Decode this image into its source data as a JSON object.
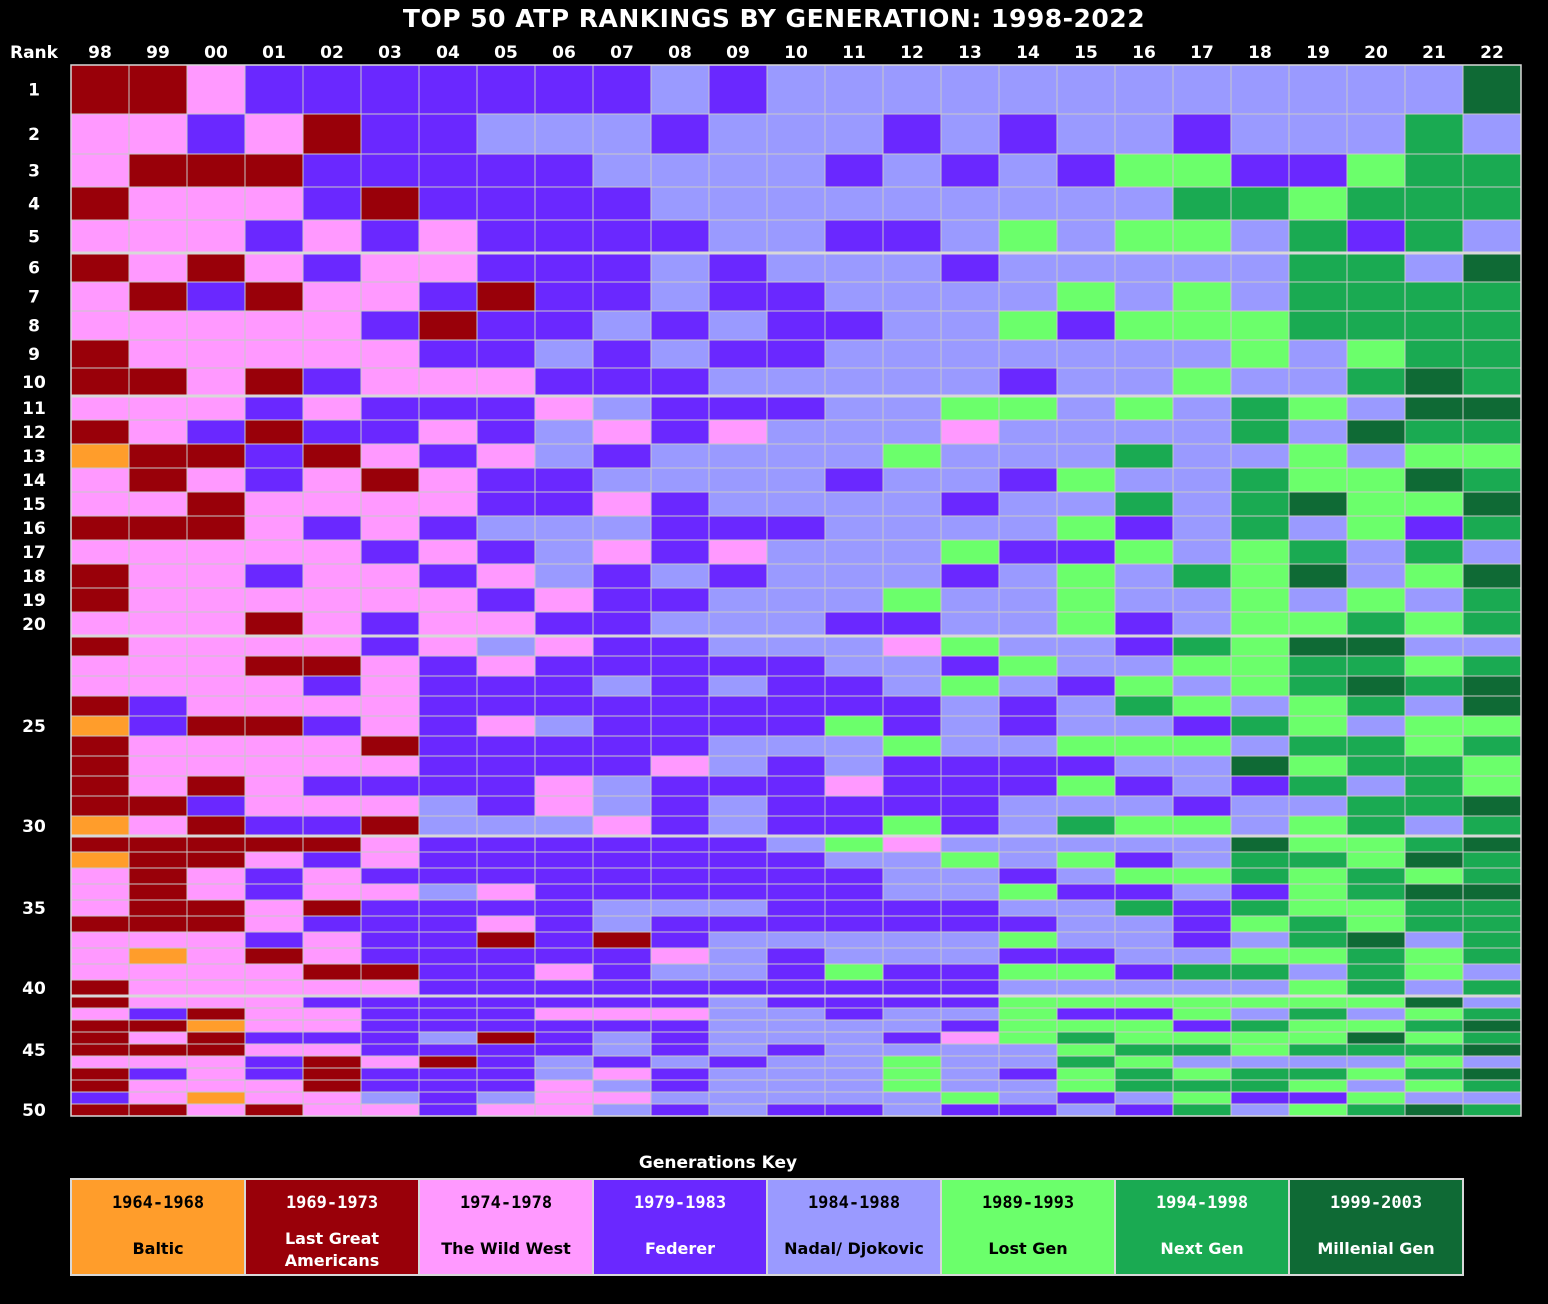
{
  "title": "TOP 50 ATP RANKINGS BY GENERATION: 1998-2022",
  "chart_data": {
    "type": "heatmap",
    "title": "TOP 50 ATP RANKINGS BY GENERATION: 1998-2022",
    "row_header": "Rank",
    "x_labels": [
      "98",
      "99",
      "00",
      "01",
      "02",
      "03",
      "04",
      "05",
      "06",
      "07",
      "08",
      "09",
      "10",
      "11",
      "12",
      "13",
      "14",
      "15",
      "16",
      "17",
      "18",
      "19",
      "20",
      "21",
      "22"
    ],
    "y_tick_labels": [
      {
        "rank": 1,
        "label": "1"
      },
      {
        "rank": 2,
        "label": "2"
      },
      {
        "rank": 3,
        "label": "3"
      },
      {
        "rank": 4,
        "label": "4"
      },
      {
        "rank": 5,
        "label": "5"
      },
      {
        "rank": 6,
        "label": "6"
      },
      {
        "rank": 7,
        "label": "7"
      },
      {
        "rank": 8,
        "label": "8"
      },
      {
        "rank": 9,
        "label": "9"
      },
      {
        "rank": 10,
        "label": "10"
      },
      {
        "rank": 11,
        "label": "11"
      },
      {
        "rank": 12,
        "label": "12"
      },
      {
        "rank": 13,
        "label": "13"
      },
      {
        "rank": 14,
        "label": "14"
      },
      {
        "rank": 15,
        "label": "15"
      },
      {
        "rank": 16,
        "label": "16"
      },
      {
        "rank": 17,
        "label": "17"
      },
      {
        "rank": 18,
        "label": "18"
      },
      {
        "rank": 19,
        "label": "19"
      },
      {
        "rank": 20,
        "label": "20"
      },
      {
        "rank": 25,
        "label": "25"
      },
      {
        "rank": 30,
        "label": "30"
      },
      {
        "rank": 35,
        "label": "35"
      },
      {
        "rank": 40,
        "label": "40"
      },
      {
        "rank": 45,
        "label": "45"
      },
      {
        "rank": 50,
        "label": "50"
      }
    ],
    "generations": [
      {
        "code": "B",
        "years": "1964-1968",
        "name": "Baltic",
        "color": "#FF9D2B"
      },
      {
        "code": "L",
        "years": "1969-1973",
        "name": "Last Great Americans",
        "color": "#990009"
      },
      {
        "code": "W",
        "years": "1974-1978",
        "name": "The Wild West",
        "color": "#FF99FF"
      },
      {
        "code": "F",
        "years": "1979-1983",
        "name": "Federer",
        "color": "#6A28FF"
      },
      {
        "code": "N",
        "years": "1984-1988",
        "name": "Nadal/ Djokovic",
        "color": "#9A9AFF"
      },
      {
        "code": "G",
        "years": "1989-1993",
        "name": "Lost Gen",
        "color": "#6BFF6B"
      },
      {
        "code": "X",
        "years": "1994-1998",
        "name": "Next Gen",
        "color": "#1AAA52"
      },
      {
        "code": "M",
        "years": "1999-2003",
        "name": "Millenial Gen",
        "color": "#0F6A35"
      }
    ],
    "legend": {
      "title": "Generations Key",
      "placement": "bottom"
    },
    "values_by_rank": [
      "LLWFFFFFFFNFNNNNNNNNNNNNM",
      "WWFWLFFNNNFNNNFNFNNFNNNXN",
      "WLLLFFFFFNNNNFNFNFGGFFGXX",
      "LWWWFLFFFFNNNNNNNNNXXGXXX",
      "WWWFWFWFFFFNNFFNGNGGNXFXN",
      "LWLWFWWFFFNFNNNFNNNNNXXNM",
      "WLFLWWFLFFNFFNNNNGNGNXXXX",
      "WWWWWFLFFNFNFFNNGFGGGXXXX",
      "LWWWWWFFNFNFFNNNNNNNGNGXX",
      "LLWLFWWWFFFNNNNNFNNGNNXMX",
      "WWWFWFFFWNFFFNNGGNGNXGNMM",
      "LWFLFFWFNWFWNNNWNNNNXNMXX",
      "BLLFLWFWNFNNNNGNNNXNNGNGG",
      "WLWFWLWFFNNNNFNNFGNNXGGMX",
      "WWLWWWWFFWFNNNNFNNXNXMGGM",
      "LLLWFWFNNNFFFNNNNGFNXNGFX",
      "WWWWWFWFNWFWNNNGFFGNGXNXN",
      "LWWFWWFWNFNFNNNFNGNXGMNGM",
      "LWWWWWWFWFFNNNGNNGNNGNGNX",
      "WWWLWFWWFFNNNFFNNGFNGGXGX",
      "LWWWWFWNWFFNNNWGNNFXGMMNN",
      "WWWLLWFWFFFFFNNFGNNGGXXGX",
      "WWWWFWFFFNFNFFNGNFGNGXMXM",
      "LFWWWWFFFFFFFFFNFNXGNGXNM",
      "BFLLFWFWNFFFFGFNFNNFXGNGG",
      "LWWWWLFFFFFNNNGNNGGGNXXGX",
      "LWWWWWFFFFWNFNFFFFNNMGXXG",
      "LWLWFFFFWNFFFWFFFGFNFXNXG",
      "LLFWWWNFWNFNFFFFNNNFNNXXM",
      "BWLFFLNNNWFNFFGFNXGGNGXNX",
      "LLLLLWFFFFFFNGWNNNNNMGGXM",
      "BLLWFWFFFFFFFNNGNGFNXXGMX",
      "WLWFWFFFFFFFFFNNFNGGXGXGX",
      "WLWFWWNWFFFFFFNNGFFNFGXMM",
      "WLLWLFFFFNNNFFFFNNXFXGGXX",
      "LLLWFFFWFNFFFFFFFNNFGXGXX",
      "WWWFWFFLFLFNNNNNGNNFNXMNX",
      "WBWLWFFFFFWNFNNNFFNNGGXGX",
      "WWWWLLFFWFNNFGFFGGFXXNXGN",
      "LWWWWWFFFFFFFFFFNNNNNGXNX",
      "LWWWFFFFFFFNFFFFGGGGGGGMN",
      "WFLWWFFFWWWNNFNNGFFGNXNGX",
      "LLBWWFFFFFFNNNNFGGGFXGGXM",
      "LWLFFFNLFNFNNNFWGXGGGGMGX",
      "LLLWWFFFFNFNFNNNNGXXGXXXM",
      "WWWFLWLFNFNFNNGNNXGNNNNGN",
      "LFWFLFFFNWFNNNGNFGXGXXGXM",
      "LWWWLFFFWNFNNNGNNGXXXGNGX",
      "FWBWWNFNWWNNNNNGNFNGFFGNN",
      "LLWLWWFWWNFNFFNFFNFXNGXMX"
    ]
  }
}
